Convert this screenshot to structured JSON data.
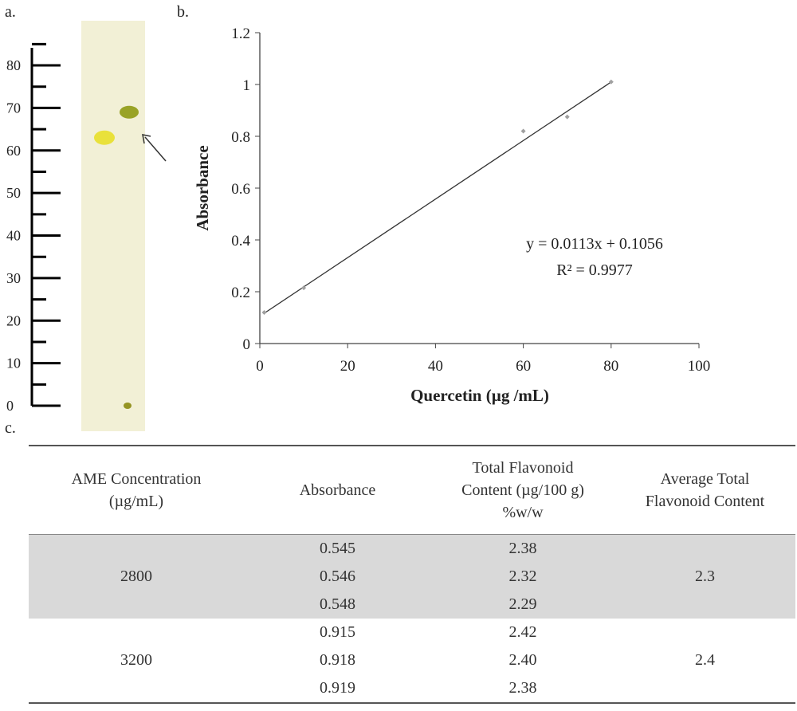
{
  "panels": {
    "a": "a.",
    "b": "b.",
    "c": "c."
  },
  "tlc": {
    "ruler_labels": [
      "80",
      "70",
      "60",
      "50",
      "40",
      "30",
      "20",
      "10",
      "0"
    ],
    "ruler_values": [
      80,
      70,
      60,
      50,
      40,
      30,
      20,
      10,
      0
    ],
    "plate_color": "#f2f0d6",
    "spots": [
      {
        "name": "left-spot",
        "value": 63,
        "color": "#e8df2a"
      },
      {
        "name": "right-spot",
        "value": 69,
        "color": "#8f9a14"
      },
      {
        "name": "origin-spot",
        "value": 0,
        "color": "#8b8a10"
      }
    ]
  },
  "chart_data": {
    "type": "scatter",
    "xlabel": "Quercetin (µg /mL)",
    "ylabel": "Absorbance",
    "xlim": [
      0,
      100
    ],
    "ylim": [
      0,
      1.2
    ],
    "x_ticks": [
      "0",
      "20",
      "40",
      "60",
      "80",
      "100"
    ],
    "y_ticks": [
      "0",
      "0.2",
      "0.4",
      "0.6",
      "0.8",
      "1",
      "1.2"
    ],
    "points": [
      {
        "x": 1,
        "y": 0.12
      },
      {
        "x": 10,
        "y": 0.215
      },
      {
        "x": 60,
        "y": 0.82
      },
      {
        "x": 70,
        "y": 0.875
      },
      {
        "x": 80,
        "y": 1.01
      }
    ],
    "trendline": {
      "slope": 0.0113,
      "intercept": 0.1056,
      "x_start": 1,
      "x_end": 80
    },
    "equation": "y = 0.0113x + 0.1056",
    "r_squared": "R² = 0.9977",
    "grid": false,
    "point_color": "#a0a0a0",
    "line_color": "#333333"
  },
  "table": {
    "headers": {
      "concentration": [
        "AME Concentration",
        "(µg/mL)"
      ],
      "absorbance": [
        "Absorbance"
      ],
      "total": [
        "Total Flavonoid",
        "Content (µg/100 g)",
        "%w/w"
      ],
      "average": [
        "Average Total",
        "Flavonoid Content"
      ]
    },
    "groups": [
      {
        "concentration": "2800",
        "absorbance": [
          "0.545",
          "0.546",
          "0.548"
        ],
        "total": [
          "2.38",
          "2.32",
          "2.29"
        ],
        "average": "2.3",
        "shaded": true
      },
      {
        "concentration": "3200",
        "absorbance": [
          "0.915",
          "0.918",
          "0.919"
        ],
        "total": [
          "2.42",
          "2.40",
          "2.38"
        ],
        "average": "2.4",
        "shaded": false
      }
    ],
    "shade_color": "#d9d9d9"
  }
}
